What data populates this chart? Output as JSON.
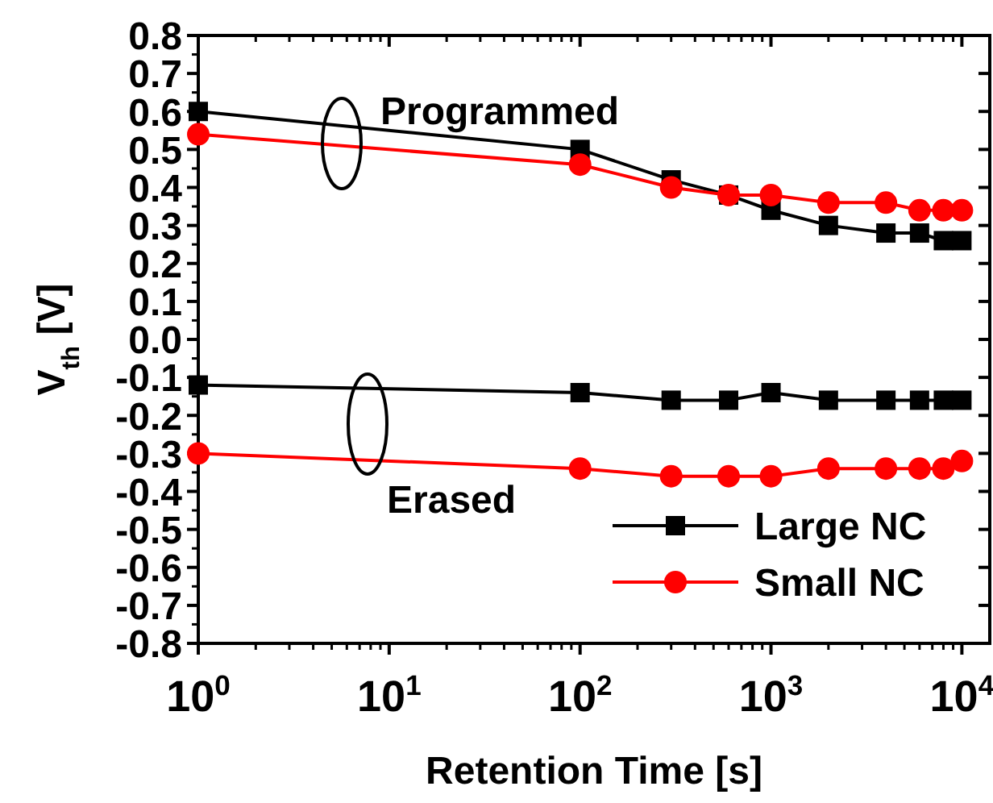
{
  "chart_data": {
    "type": "line",
    "xlabel": "Retention Time [s]",
    "ylabel": "V$_{th}$ [V]",
    "log": "x",
    "xlim": [
      1,
      14000
    ],
    "xticks": [
      {
        "value": 1,
        "label": "10$^{0}$"
      },
      {
        "value": 10,
        "label": "10$^{1}$"
      },
      {
        "value": 100,
        "label": "10$^{2}$"
      },
      {
        "value": 1000,
        "label": "10$^{3}$"
      },
      {
        "value": 10000,
        "label": "10$^{4}$"
      }
    ],
    "ylim": [
      -0.8,
      0.8
    ],
    "yticks": [
      0.8,
      0.7,
      0.6,
      0.5,
      0.4,
      0.3,
      0.2,
      0.1,
      {
        "value": 0,
        "label": "0.0"
      },
      -0.1,
      -0.2,
      -0.3,
      -0.4,
      -0.5,
      -0.6,
      -0.7,
      -0.8
    ],
    "grid": false,
    "legend": "bottom right",
    "line_style": "solid",
    "x": [
      1,
      100,
      300,
      600,
      1000,
      2000,
      4000,
      6000,
      8000,
      10000
    ],
    "series": [
      {
        "name": "Large NC",
        "color": "#000000",
        "marker": "square",
        "values": [
          0.6,
          0.5,
          0.42,
          0.38,
          0.34,
          0.3,
          0.28,
          0.28,
          0.26,
          0.26
        ]
      },
      {
        "name": "Small NC",
        "color": "#ff0000",
        "marker": "circle",
        "values": [
          0.54,
          0.46,
          0.4,
          0.38,
          0.38,
          0.36,
          0.36,
          0.34,
          0.34,
          0.34
        ]
      },
      {
        "color": "#000000",
        "marker": "square",
        "values": [
          -0.12,
          -0.14,
          -0.16,
          -0.16,
          -0.14,
          -0.16,
          -0.16,
          -0.16,
          -0.16,
          -0.16
        ]
      },
      {
        "color": "#ff0000",
        "marker": "circle",
        "values": [
          -0.3,
          -0.34,
          -0.36,
          -0.36,
          -0.36,
          -0.34,
          -0.34,
          -0.34,
          -0.34,
          -0.32
        ]
      }
    ],
    "annotations": [
      "Programmed",
      "Erased"
    ]
  }
}
